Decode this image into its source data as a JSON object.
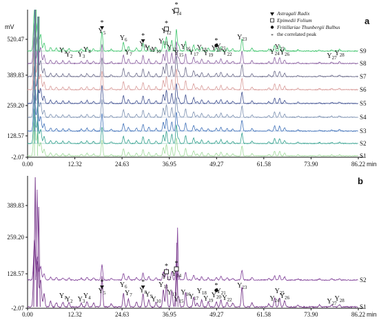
{
  "chart_data": [
    {
      "panel": "a",
      "type": "line",
      "ylabel": "mV",
      "xlabel": "min",
      "yticks": [
        "520.47",
        "389.83",
        "259.20",
        "128.57",
        "-2.07"
      ],
      "xticks": [
        "0.00",
        "12.32",
        "24.63",
        "36.95",
        "49.27",
        "61.58",
        "73.90",
        "86.22"
      ],
      "xlim": [
        0,
        86.22
      ],
      "ylim": [
        -2.07,
        560
      ],
      "series": [
        {
          "name": "S1",
          "color": "#9fd99a"
        },
        {
          "name": "S2",
          "color": "#2f9e8c"
        },
        {
          "name": "S3",
          "color": "#3d6fb8"
        },
        {
          "name": "S4",
          "color": "#7a8fb0"
        },
        {
          "name": "S5",
          "color": "#3b4c8e"
        },
        {
          "name": "S6",
          "color": "#d89a98"
        },
        {
          "name": "S7",
          "color": "#6a6a8a"
        },
        {
          "name": "S8",
          "color": "#8a5fa0"
        },
        {
          "name": "S9",
          "color": "#3cc46a"
        }
      ],
      "peaks": [
        {
          "label": "Y1",
          "x": 9.2
        },
        {
          "label": "Y2",
          "x": 10.8
        },
        {
          "label": "Y3",
          "x": 14.0
        },
        {
          "label": "Y4",
          "x": 15.5
        },
        {
          "label": "Y5",
          "x": 19.4
        },
        {
          "label": "Y6",
          "x": 25.0
        },
        {
          "label": "Y7",
          "x": 26.3
        },
        {
          "label": "Y8",
          "x": 30.1
        },
        {
          "label": "Y9",
          "x": 31.6
        },
        {
          "label": "Y10",
          "x": 33.5
        },
        {
          "label": "Y11",
          "x": 35.4
        },
        {
          "label": "Y12",
          "x": 36.2
        },
        {
          "label": "Y13",
          "x": 37.6
        },
        {
          "label": "Y14",
          "x": 38.8
        },
        {
          "label": "Y15",
          "x": 39.4
        },
        {
          "label": "Y16",
          "x": 41.2
        },
        {
          "label": "Y17",
          "x": 43.3
        },
        {
          "label": "Y18",
          "x": 45.4
        },
        {
          "label": "Y19",
          "x": 47.1
        },
        {
          "label": "Y20",
          "x": 49.2
        },
        {
          "label": "Y21",
          "x": 50.4
        },
        {
          "label": "Y22",
          "x": 52.0
        },
        {
          "label": "Y23",
          "x": 55.9
        },
        {
          "label": "Y24",
          "x": 64.4
        },
        {
          "label": "Y25",
          "x": 65.7
        },
        {
          "label": "Y26",
          "x": 67.0
        },
        {
          "label": "Y27",
          "x": 79.3
        },
        {
          "label": "Y28",
          "x": 81.3
        }
      ]
    },
    {
      "panel": "b",
      "type": "line",
      "xlabel": "min",
      "yticks": [
        "389.83",
        "259.20",
        "128.57",
        "-2.07"
      ],
      "xticks": [
        "0.00",
        "12.32",
        "24.63",
        "36.95",
        "49.27",
        "61.58",
        "73.90",
        "86.22"
      ],
      "xlim": [
        0,
        86.22
      ],
      "ylim": [
        -2.07,
        430
      ],
      "series": [
        {
          "name": "S2",
          "color": "#8a4fa0"
        },
        {
          "name": "S1",
          "color": "#7a3c8c"
        }
      ],
      "peaks": [
        {
          "label": "Y1",
          "x": 9.2
        },
        {
          "label": "Y2",
          "x": 10.8
        },
        {
          "label": "Y3",
          "x": 14.0
        },
        {
          "label": "Y4",
          "x": 15.5
        },
        {
          "label": "Y5",
          "x": 19.4
        },
        {
          "label": "Y6",
          "x": 25.0
        },
        {
          "label": "Y7",
          "x": 26.3
        },
        {
          "label": "Y8",
          "x": 30.1
        },
        {
          "label": "Y9",
          "x": 31.6
        },
        {
          "label": "Y10",
          "x": 33.5
        },
        {
          "label": "Y11",
          "x": 35.4
        },
        {
          "label": "Y12",
          "x": 36.2
        },
        {
          "label": "Y13",
          "x": 37.6
        },
        {
          "label": "Y14",
          "x": 38.8
        },
        {
          "label": "Y15",
          "x": 39.4
        },
        {
          "label": "Y16",
          "x": 41.2
        },
        {
          "label": "Y17",
          "x": 43.3
        },
        {
          "label": "Y18",
          "x": 45.4
        },
        {
          "label": "Y19",
          "x": 47.1
        },
        {
          "label": "Y20",
          "x": 49.2
        },
        {
          "label": "Y21",
          "x": 50.4
        },
        {
          "label": "Y22",
          "x": 52.0
        },
        {
          "label": "Y23",
          "x": 55.9
        },
        {
          "label": "Y24",
          "x": 64.4
        },
        {
          "label": "Y25",
          "x": 65.7
        },
        {
          "label": "Y26",
          "x": 67.0
        },
        {
          "label": "Y27",
          "x": 79.3
        },
        {
          "label": "Y28",
          "x": 81.3
        }
      ]
    }
  ],
  "legend": [
    {
      "symbol": "triangle-down",
      "label": "Astragali Radix",
      "italic": true
    },
    {
      "symbol": "square-open",
      "label": "Epimedii Folium",
      "italic": true
    },
    {
      "symbol": "circle",
      "label": "Fritillariae Thunbergii Bulbus",
      "italic": true
    },
    {
      "symbol": "asterisk",
      "label": "the correlated peak",
      "italic": false
    }
  ],
  "panel_labels": {
    "a": "a",
    "b": "b"
  }
}
